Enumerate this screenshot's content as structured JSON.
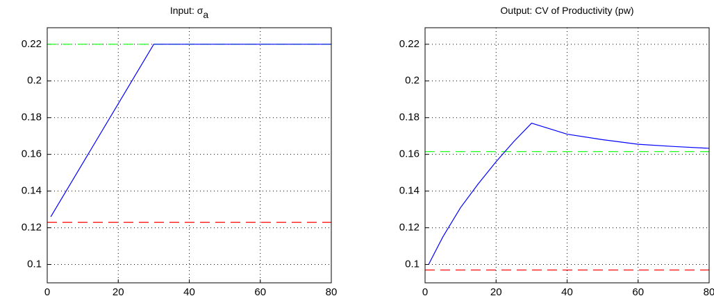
{
  "chart_data": [
    {
      "type": "line",
      "title": "Input: σ",
      "title_subscript": "a",
      "xlim": [
        0,
        80
      ],
      "xticks": [
        0,
        20,
        40,
        60,
        80
      ],
      "ylim": [
        0.09,
        0.229
      ],
      "yticks": [
        0.1,
        0.12,
        0.14,
        0.16,
        0.18,
        0.2,
        0.22
      ],
      "grid": true,
      "series": [
        {
          "color": "#00ff00",
          "style": "dashed",
          "x": [
            0,
            80
          ],
          "values": [
            0.22,
            0.22
          ]
        },
        {
          "color": "#ff0000",
          "style": "dashed",
          "x": [
            0,
            80
          ],
          "values": [
            0.123,
            0.123
          ]
        },
        {
          "color": "#0000ff",
          "style": "solid",
          "x": [
            1,
            30,
            80
          ],
          "values": [
            0.126,
            0.22,
            0.22
          ]
        }
      ]
    },
    {
      "type": "line",
      "title": "Output: CV of Productivity (pw)",
      "xlim": [
        0,
        80
      ],
      "xticks": [
        0,
        20,
        40,
        60,
        80
      ],
      "ylim": [
        0.09,
        0.229
      ],
      "yticks": [
        0.1,
        0.12,
        0.14,
        0.16,
        0.18,
        0.2,
        0.22
      ],
      "grid": true,
      "series": [
        {
          "color": "#00ff00",
          "style": "dashed",
          "x": [
            0,
            80
          ],
          "values": [
            0.1615,
            0.1615
          ]
        },
        {
          "color": "#ff0000",
          "style": "dashed",
          "x": [
            0,
            80
          ],
          "values": [
            0.097,
            0.097
          ]
        },
        {
          "color": "#0000ff",
          "style": "solid",
          "x": [
            1,
            5,
            10,
            15,
            20,
            25,
            30,
            40,
            50,
            60,
            70,
            80
          ],
          "values": [
            0.1,
            0.115,
            0.131,
            0.144,
            0.156,
            0.167,
            0.177,
            0.171,
            0.168,
            0.1655,
            0.1643,
            0.1633
          ]
        }
      ]
    }
  ]
}
